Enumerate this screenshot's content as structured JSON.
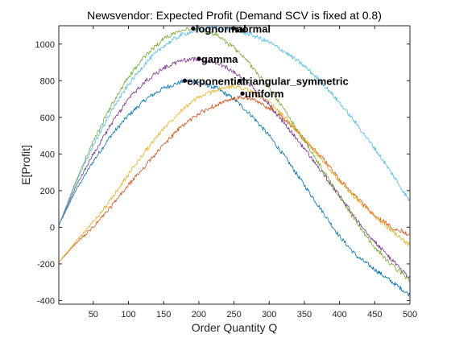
{
  "chart_data": {
    "type": "line",
    "title": "Newsvendor: Expected Profit  (Demand SCV is fixed at 0.8)",
    "xlabel": "Order Quantity Q",
    "ylabel": "E[Profit]",
    "xlim": [
      1,
      500
    ],
    "ylim": [
      -420,
      1100
    ],
    "xticks": [
      50,
      100,
      150,
      200,
      250,
      300,
      350,
      400,
      450,
      500
    ],
    "yticks": [
      -400,
      -200,
      0,
      200,
      400,
      600,
      800,
      1000
    ],
    "grid": false,
    "legend": "none",
    "series": [
      {
        "name": "",
        "color": "#0072BD",
        "x": [
          1,
          25,
          50,
          75,
          100,
          125,
          150,
          180,
          200,
          225,
          250,
          275,
          300,
          325,
          350,
          375,
          400,
          425,
          450,
          475,
          500
        ],
        "y": [
          10,
          200,
          360,
          500,
          610,
          700,
          760,
          800,
          790,
          760,
          700,
          610,
          500,
          370,
          230,
          90,
          -50,
          -160,
          -230,
          -300,
          -370
        ]
      },
      {
        "name": "",
        "color": "#D95319",
        "x": [
          1,
          25,
          50,
          75,
          100,
          125,
          150,
          175,
          200,
          225,
          250,
          262,
          275,
          300,
          325,
          350,
          375,
          400,
          425,
          450,
          475,
          500
        ],
        "y": [
          -190,
          -90,
          0,
          110,
          230,
          340,
          450,
          550,
          620,
          670,
          700,
          710,
          700,
          650,
          580,
          480,
          380,
          260,
          160,
          60,
          0,
          -40
        ]
      },
      {
        "name": "",
        "color": "#EDB120",
        "x": [
          1,
          25,
          50,
          75,
          100,
          125,
          150,
          175,
          200,
          225,
          250,
          262,
          275,
          300,
          325,
          350,
          375,
          400,
          425,
          450,
          475,
          500
        ],
        "y": [
          -190,
          -80,
          30,
          150,
          290,
          420,
          540,
          640,
          710,
          750,
          770,
          760,
          740,
          680,
          590,
          480,
          370,
          250,
          150,
          60,
          -20,
          -100
        ]
      },
      {
        "name": "",
        "color": "#7E2F8E",
        "x": [
          1,
          25,
          50,
          75,
          100,
          125,
          150,
          175,
          200,
          225,
          250,
          275,
          300,
          325,
          350,
          375,
          400,
          425,
          450,
          475,
          500
        ],
        "y": [
          10,
          220,
          400,
          560,
          700,
          800,
          870,
          910,
          920,
          900,
          850,
          770,
          670,
          550,
          430,
          300,
          170,
          40,
          -80,
          -180,
          -280
        ]
      },
      {
        "name": "",
        "color": "#77AC30",
        "x": [
          1,
          25,
          50,
          75,
          100,
          125,
          150,
          175,
          190,
          200,
          225,
          250,
          275,
          300,
          325,
          350,
          375,
          400,
          425,
          450,
          475,
          500
        ],
        "y": [
          10,
          250,
          470,
          660,
          820,
          940,
          1030,
          1080,
          1085,
          1080,
          1050,
          980,
          880,
          760,
          620,
          470,
          320,
          170,
          20,
          -110,
          -210,
          -290
        ]
      },
      {
        "name": "",
        "color": "#4DBEEE",
        "x": [
          1,
          25,
          50,
          75,
          100,
          125,
          150,
          175,
          200,
          225,
          250,
          275,
          300,
          325,
          350,
          375,
          400,
          425,
          450,
          475,
          500
        ],
        "y": [
          10,
          240,
          450,
          630,
          780,
          900,
          990,
          1050,
          1080,
          1090,
          1080,
          1050,
          1010,
          950,
          880,
          790,
          680,
          560,
          430,
          290,
          140
        ]
      }
    ],
    "annotations": [
      {
        "label": "lognormal",
        "x": 192,
        "y": 1085
      },
      {
        "label": "normal",
        "x": 249,
        "y": 1085
      },
      {
        "label": "gamma",
        "x": 200,
        "y": 920
      },
      {
        "label": "exponential",
        "x": 180,
        "y": 800
      },
      {
        "label": "triangular_symmetric",
        "x": 258,
        "y": 800
      },
      {
        "label": "uniform",
        "x": 262,
        "y": 730
      }
    ]
  }
}
